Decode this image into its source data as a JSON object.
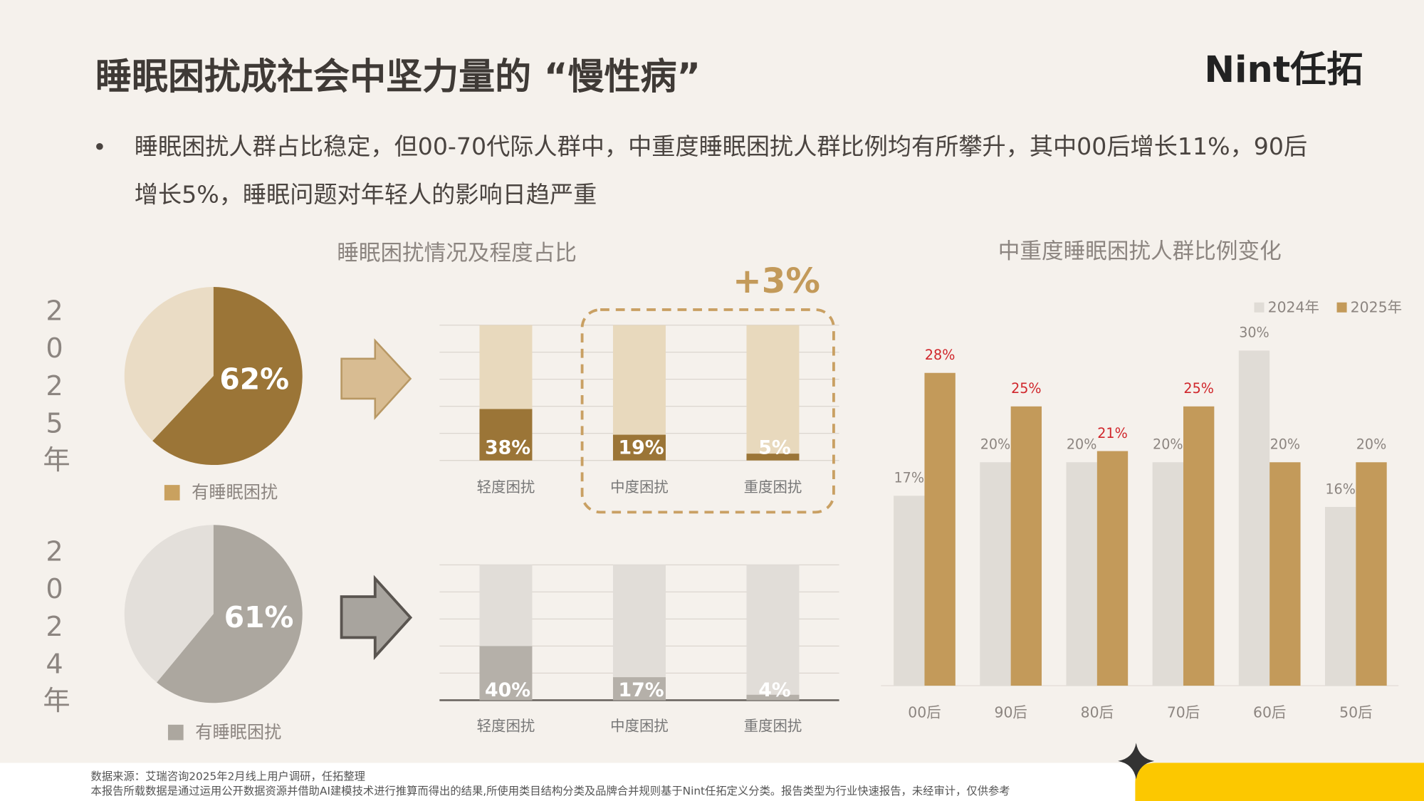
{
  "header": {
    "title": "睡眠困扰成社会中坚力量的 “慢性病”",
    "logo": "Nint任拓"
  },
  "summary": "睡眠困扰人群占比稳定，但00-70代际人群中，中重度睡眠困扰人群比例均有所攀升，其中00后增长11%，90后增长5%，睡眠问题对年轻人的影响日趋严重",
  "chart_data": [
    {
      "type": "pie",
      "year": "2025年",
      "categories": [
        "有睡眠困扰",
        null
      ],
      "values": [
        62,
        38
      ],
      "value_labels": [
        "62%",
        null
      ],
      "colors": [
        "#9b7537",
        "#eadcc5"
      ],
      "legend_color": "#c9a15f"
    },
    {
      "type": "pie",
      "year": "2024年",
      "categories": [
        "有睡眠困扰",
        null
      ],
      "values": [
        61,
        39
      ],
      "value_labels": [
        "61%",
        null
      ],
      "colors": [
        "#aca79f",
        "#e3dfda"
      ],
      "legend_color": "#aca79f"
    },
    {
      "type": "bar",
      "title": "睡眠困扰情况及程度占比",
      "annotation": "+3%",
      "categories": [
        "轻度困扰",
        "中度困扰",
        "重度困扰"
      ],
      "values": [
        38,
        19,
        5
      ],
      "value_labels": [
        "38%",
        "19%",
        "5%"
      ],
      "color": "#9b7537",
      "track_color": "#e8d9bd",
      "ylim": [
        0,
        100
      ],
      "yticks": [
        0,
        20,
        40,
        60,
        80,
        100
      ],
      "grid": true
    },
    {
      "type": "bar",
      "categories": [
        "轻度困扰",
        "中度困扰",
        "重度困扰"
      ],
      "values": [
        40,
        17,
        4
      ],
      "value_labels": [
        "40%",
        "17%",
        "4%"
      ],
      "color": "#b5b0a9",
      "track_color": "#e1ddd8",
      "ylim": [
        0,
        100
      ],
      "yticks": [
        0,
        20,
        40,
        60,
        80,
        100
      ],
      "grid": true
    },
    {
      "type": "bar",
      "title": "中重度睡眠困扰人群比例变化",
      "categories": [
        "00后",
        "90后",
        "80后",
        "70后",
        "60后",
        "50后"
      ],
      "series": [
        {
          "name": "2024年",
          "color": "#e0dcd6",
          "values": [
            17,
            20,
            20,
            20,
            30,
            16
          ],
          "value_labels": [
            "17%",
            "20%",
            "20%",
            "20%",
            "30%",
            "16%"
          ],
          "label_colors": [
            "#8c8580",
            "#8c8580",
            "#8c8580",
            "#8c8580",
            "#8c8580",
            "#8c8580"
          ]
        },
        {
          "name": "2025年",
          "color": "#c39a5a",
          "values": [
            28,
            25,
            21,
            25,
            20,
            20
          ],
          "value_labels": [
            "28%",
            "25%",
            "21%",
            "25%",
            "20%",
            "20%"
          ],
          "label_colors": [
            "#d0262b",
            "#d0262b",
            "#d0262b",
            "#d0262b",
            "#8c8580",
            "#8c8580"
          ]
        }
      ],
      "ylim": [
        0,
        30
      ],
      "legend": "upper right"
    }
  ],
  "footer": {
    "source": "数据来源：艾瑞咨询2025年2月线上用户调研，任拓整理",
    "note": "本报告所载数据是通过运用公开数据资源并借助AI建模技术进行推算而得出的结果,所使用类目结构分类及品牌合并规则基于Nint任拓定义分类。报告类型为行业快速报告，未经审计，仅供参考"
  }
}
